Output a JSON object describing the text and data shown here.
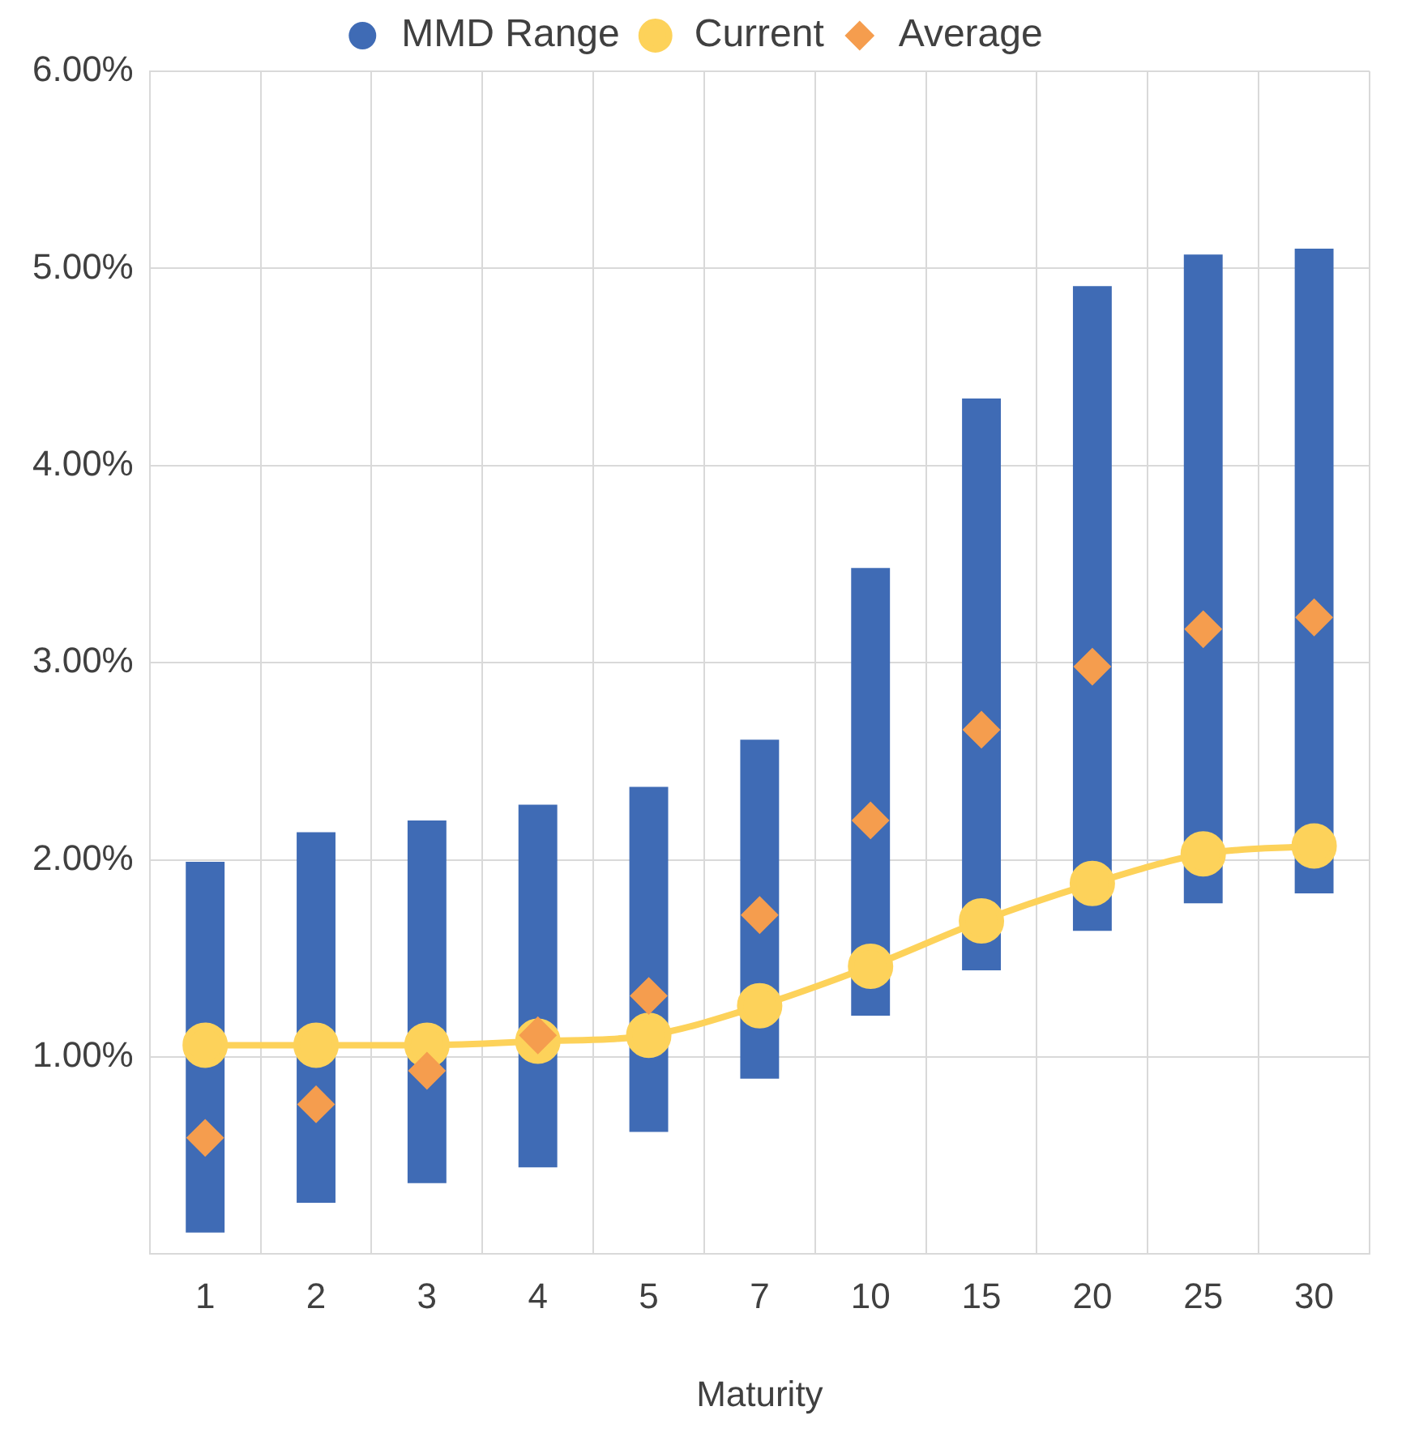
{
  "chart_data": {
    "type": "bar",
    "xlabel": "Maturity",
    "categories": [
      "1",
      "2",
      "3",
      "4",
      "5",
      "7",
      "10",
      "15",
      "20",
      "25",
      "30"
    ],
    "series": [
      {
        "name": "MMD Range",
        "color": "#3f6bb5",
        "base": [
          0.11,
          0.26,
          0.36,
          0.44,
          0.62,
          0.89,
          1.21,
          1.44,
          1.64,
          1.78,
          1.83
        ],
        "values": [
          1.88,
          1.88,
          1.84,
          1.84,
          1.75,
          1.72,
          2.27,
          2.9,
          3.27,
          3.29,
          3.27
        ]
      },
      {
        "name": "Current",
        "type": "line",
        "color": "#fdd25a",
        "marker": "circle",
        "values": [
          1.06,
          1.06,
          1.06,
          1.08,
          1.11,
          1.26,
          1.46,
          1.69,
          1.88,
          2.03,
          2.07
        ]
      },
      {
        "name": "Average",
        "type": "scatter",
        "color": "#f59d4e",
        "marker": "diamond",
        "values": [
          0.59,
          0.76,
          0.93,
          1.11,
          1.31,
          1.72,
          2.2,
          2.66,
          2.98,
          3.17,
          3.23
        ]
      }
    ],
    "ylim": [
      0,
      6
    ],
    "yticks": [
      {
        "value": 1,
        "label": "1.00%"
      },
      {
        "value": 2,
        "label": "2.00%"
      },
      {
        "value": 3,
        "label": "3.00%"
      },
      {
        "value": 4,
        "label": "4.00%"
      },
      {
        "value": 5,
        "label": "5.00%"
      },
      {
        "value": 6,
        "label": "6.00%"
      }
    ],
    "grid": true,
    "legend": "top"
  }
}
